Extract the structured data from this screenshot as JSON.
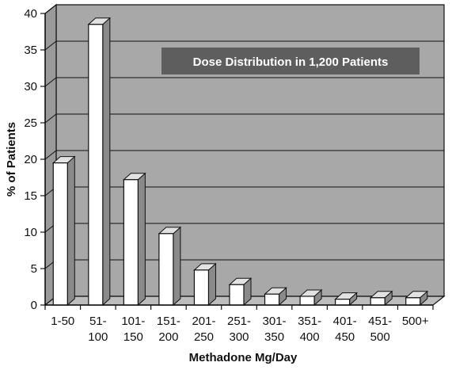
{
  "chart_data": {
    "type": "bar",
    "title": "Dose Distribution in 1,200 Patients",
    "xlabel": "Methadone Mg/Day",
    "ylabel": "% of Patients",
    "ylim": [
      0,
      40
    ],
    "yticks": [
      "0",
      "5",
      "10",
      "15",
      "20",
      "25",
      "30",
      "35",
      "40"
    ],
    "categories": [
      [
        "1-50"
      ],
      [
        "51-",
        "100"
      ],
      [
        "101-",
        "150"
      ],
      [
        "151-",
        "200"
      ],
      [
        "201-",
        "250"
      ],
      [
        "251-",
        "300"
      ],
      [
        "301-",
        "350"
      ],
      [
        "351-",
        "400"
      ],
      [
        "401-",
        "450"
      ],
      [
        "451-",
        "500"
      ],
      [
        "500+"
      ]
    ],
    "values": [
      19.5,
      38.5,
      17.2,
      9.8,
      4.8,
      2.8,
      1.5,
      1.2,
      0.8,
      1.0,
      1.0
    ],
    "grid": true,
    "style": "3d-bar"
  },
  "colors": {
    "wall": "#a8a8a8",
    "floor": "#bdbdbd",
    "bar_front": "#ffffff",
    "bar_side": "#8a8a8a",
    "bar_top": "#e2e2e2",
    "title_box": "#5e5e5e",
    "line": "#111111"
  }
}
